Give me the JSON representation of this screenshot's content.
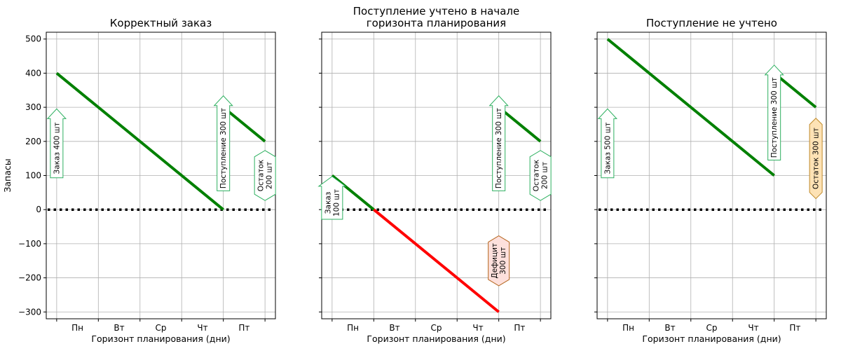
{
  "chart_data": [
    {
      "type": "line",
      "title": [
        "Корректный заказ"
      ],
      "xlabel": "Горизонт планирования (дни)",
      "ylabel": "Запасы",
      "ylim": [
        -320,
        520
      ],
      "yticks": [
        500,
        400,
        300,
        200,
        100,
        0,
        -100,
        -200,
        -300
      ],
      "ytick_labels": [
        "500",
        "400",
        "300",
        "200",
        "100",
        "0",
        "−100",
        "−200",
        "−300"
      ],
      "show_ytick_labels": true,
      "xlim": [
        -0.25,
        5.25
      ],
      "x_categories": [
        "Пн",
        "Вт",
        "Ср",
        "Чт",
        "Пт"
      ],
      "grid": true,
      "zero_line": true,
      "series": [
        {
          "color": "#008000",
          "points": [
            [
              0,
              400
            ],
            [
              4,
              0
            ]
          ]
        },
        {
          "color": "#008000",
          "points": [
            [
              4,
              300
            ],
            [
              5,
              200
            ]
          ]
        }
      ],
      "annotations": [
        {
          "text": [
            "Заказ 400 шт"
          ],
          "shape": "arrow",
          "x": 0,
          "y": 180,
          "fill": "#ffffff",
          "stroke": "#2eb060"
        },
        {
          "text": [
            "Поступление 300 шт"
          ],
          "shape": "arrow",
          "x": 4,
          "y": 180,
          "fill": "#ffffff",
          "stroke": "#2eb060"
        },
        {
          "text": [
            "Остаток",
            "200 шт"
          ],
          "shape": "hex",
          "x": 5,
          "y": 100,
          "fill": "#ffffff",
          "stroke": "#2eb060"
        }
      ]
    },
    {
      "type": "line",
      "title": [
        "Поступление учтено в начале",
        "горизонта планирования"
      ],
      "xlabel": "Горизонт планирования (дни)",
      "ylabel": "",
      "ylim": [
        -320,
        520
      ],
      "yticks": [
        500,
        400,
        300,
        200,
        100,
        0,
        -100,
        -200,
        -300
      ],
      "ytick_labels": [
        "500",
        "400",
        "300",
        "200",
        "100",
        "0",
        "−100",
        "−200",
        "−300"
      ],
      "show_ytick_labels": false,
      "xlim": [
        -0.25,
        5.25
      ],
      "x_categories": [
        "Пн",
        "Вт",
        "Ср",
        "Чт",
        "Пт"
      ],
      "grid": true,
      "zero_line": true,
      "series": [
        {
          "color": "#008000",
          "points": [
            [
              0,
              100
            ],
            [
              1,
              0
            ]
          ]
        },
        {
          "color": "#ff0000",
          "points": [
            [
              1,
              0
            ],
            [
              4,
              -300
            ]
          ]
        },
        {
          "color": "#008000",
          "points": [
            [
              4,
              300
            ],
            [
              5,
              200
            ]
          ]
        }
      ],
      "annotations": [
        {
          "text": [
            "Заказ",
            "100 шт"
          ],
          "shape": "arrow",
          "x": 0,
          "y": 20,
          "fill": "#ffffff",
          "stroke": "#2eb060"
        },
        {
          "text": [
            "Поступление 300 шт"
          ],
          "shape": "arrow",
          "x": 4,
          "y": 180,
          "fill": "#ffffff",
          "stroke": "#2eb060"
        },
        {
          "text": [
            "Остаток",
            "200 шт"
          ],
          "shape": "hex",
          "x": 5,
          "y": 100,
          "fill": "#ffffff",
          "stroke": "#2eb060"
        },
        {
          "text": [
            "Дефицит",
            "300 шт"
          ],
          "shape": "hex",
          "x": 4,
          "y": -150,
          "fill": "#fde0dc",
          "stroke": "#b5651d"
        }
      ]
    },
    {
      "type": "line",
      "title": [
        "Поступление не учтено"
      ],
      "xlabel": "Горизонт планирования (дни)",
      "ylabel": "",
      "ylim": [
        -320,
        520
      ],
      "yticks": [
        500,
        400,
        300,
        200,
        100,
        0,
        -100,
        -200,
        -300
      ],
      "ytick_labels": [
        "500",
        "400",
        "300",
        "200",
        "100",
        "0",
        "−100",
        "−200",
        "−300"
      ],
      "show_ytick_labels": false,
      "xlim": [
        -0.25,
        5.25
      ],
      "x_categories": [
        "Пн",
        "Вт",
        "Ср",
        "Чт",
        "Пт"
      ],
      "grid": true,
      "zero_line": true,
      "series": [
        {
          "color": "#008000",
          "points": [
            [
              0,
              500
            ],
            [
              4,
              100
            ]
          ]
        },
        {
          "color": "#008000",
          "points": [
            [
              4,
              400
            ],
            [
              5,
              300
            ]
          ]
        }
      ],
      "annotations": [
        {
          "text": [
            "Заказ 500 шт"
          ],
          "shape": "arrow",
          "x": 0,
          "y": 180,
          "fill": "#ffffff",
          "stroke": "#2eb060"
        },
        {
          "text": [
            "Поступление 300 шт"
          ],
          "shape": "arrow",
          "x": 4,
          "y": 270,
          "fill": "#ffffff",
          "stroke": "#2eb060"
        },
        {
          "text": [
            "Остаток 300 шт"
          ],
          "shape": "hex",
          "x": 5,
          "y": 150,
          "fill": "#fde2b5",
          "stroke": "#c08a2a"
        }
      ]
    }
  ]
}
